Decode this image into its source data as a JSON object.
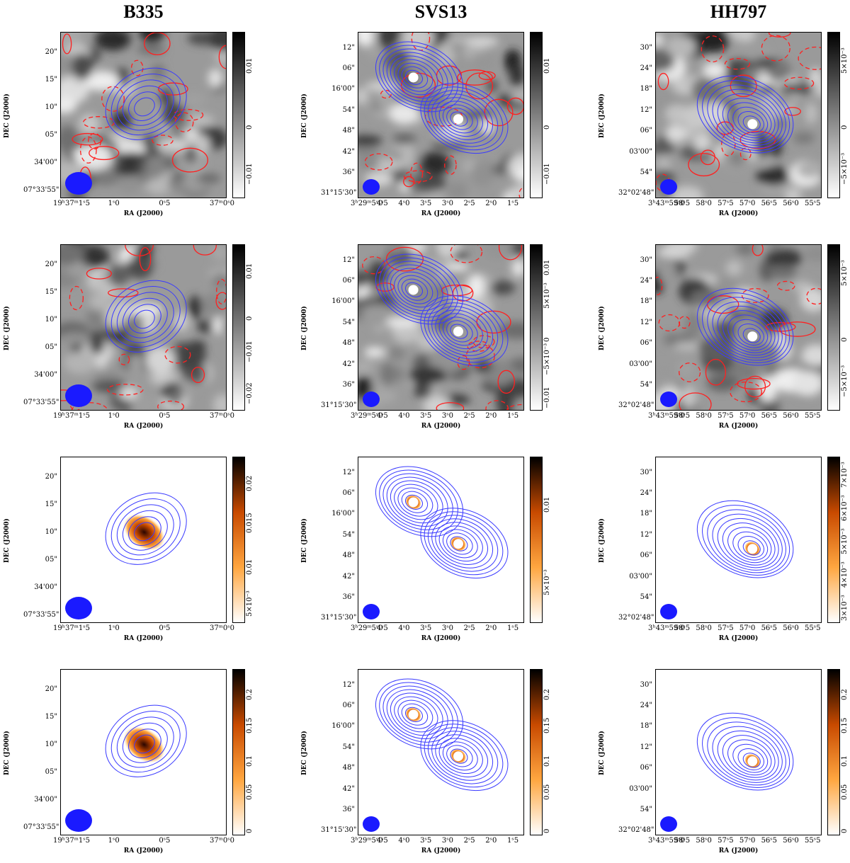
{
  "columns": [
    {
      "title": "B335",
      "ra_ticks": [
        "19ʰ37ᵐ1ˢ5",
        "1ˢ0",
        "0ˢ5",
        "37ᵐ0ˢ0"
      ],
      "dec_ticks": [
        "20\"",
        "15\"",
        "10\"",
        "05\"",
        "34'00\"",
        "07°33'55\""
      ],
      "cbar": [
        [
          "0.01",
          "0",
          "−0.01"
        ],
        [
          "0.01",
          "0",
          "−0.01",
          "−0.02"
        ],
        [
          "0.02",
          "0.015",
          "0.01",
          "5×10⁻³"
        ],
        [
          "0.2",
          "0.15",
          "0.1",
          "0.05",
          "0"
        ]
      ]
    },
    {
      "title": "SVS13",
      "ra_ticks": [
        "3ʰ29ᵐ5ˢ0",
        "4ˢ5",
        "4ˢ0",
        "3ˢ5",
        "3ˢ0",
        "2ˢ5",
        "2ˢ0",
        "1ˢ5"
      ],
      "dec_ticks": [
        "12\"",
        "06\"",
        "16'00\"",
        "54\"",
        "48\"",
        "42\"",
        "36\"",
        "31°15'30\""
      ],
      "cbar": [
        [
          "0.01",
          "0",
          "−0.01"
        ],
        [
          "0.01",
          "5×10⁻³",
          "0",
          "−5×10⁻³",
          "−0.01"
        ],
        [
          "0.01",
          "5×10⁻³"
        ],
        [
          "0.2",
          "0.15",
          "0.1",
          "0.05",
          "0"
        ]
      ]
    },
    {
      "title": "HH797",
      "ra_ticks": [
        "3ʰ43ᵐ59ˢ0",
        "58ˢ5",
        "58ˢ0",
        "57ˢ5",
        "57ˢ0",
        "56ˢ5",
        "56ˢ0",
        "55ˢ5"
      ],
      "dec_ticks": [
        "30\"",
        "24\"",
        "18\"",
        "12\"",
        "06\"",
        "03'00\"",
        "54\"",
        "32°02'48\""
      ],
      "cbar": [
        [
          "5×10⁻³",
          "0",
          "−5×10⁻³"
        ],
        [
          "5×10⁻³",
          "0",
          "−5×10⁻³"
        ],
        [
          "7×10⁻³",
          "6×10⁻³",
          "5×10⁻³",
          "4×10⁻³",
          "3×10⁻³"
        ],
        [
          "0.2",
          "0.15",
          "0.1",
          "0.05",
          "0"
        ]
      ]
    }
  ],
  "axis": {
    "xlabel": "RA (J2000)",
    "ylabel": "DEC (J2000)"
  },
  "colors": {
    "contour_blue": "#3a3aff",
    "contour_red": "#ff2020",
    "beam": "#1a1aff"
  }
}
